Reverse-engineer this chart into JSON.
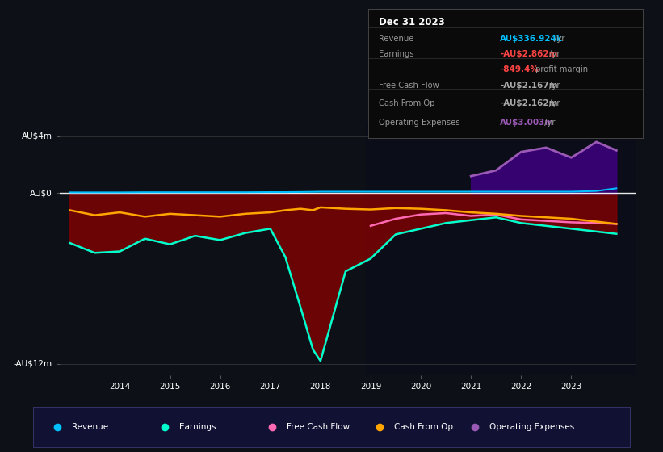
{
  "bg_color": "#0d1117",
  "years": [
    2013.0,
    2013.5,
    2014.0,
    2014.5,
    2015.0,
    2015.5,
    2016.0,
    2016.5,
    2017.0,
    2017.3,
    2017.6,
    2017.85,
    2018.0,
    2018.5,
    2019.0,
    2019.5,
    2020.0,
    2020.5,
    2021.0,
    2021.5,
    2022.0,
    2022.5,
    2023.0,
    2023.5,
    2023.9
  ],
  "revenue": [
    0.05,
    0.05,
    0.05,
    0.06,
    0.06,
    0.06,
    0.06,
    0.06,
    0.07,
    0.07,
    0.08,
    0.09,
    0.1,
    0.1,
    0.1,
    0.1,
    0.1,
    0.1,
    0.1,
    0.1,
    0.1,
    0.1,
    0.1,
    0.15,
    0.337
  ],
  "earnings": [
    -3.5,
    -4.2,
    -4.1,
    -3.2,
    -3.6,
    -3.0,
    -3.3,
    -2.8,
    -2.5,
    -4.5,
    -8.0,
    -11.0,
    -11.8,
    -5.5,
    -4.6,
    -2.9,
    -2.5,
    -2.1,
    -1.9,
    -1.7,
    -2.1,
    -2.3,
    -2.5,
    -2.7,
    -2.862
  ],
  "free_cash_flow": [
    null,
    null,
    null,
    null,
    null,
    null,
    null,
    null,
    null,
    null,
    null,
    null,
    null,
    null,
    -2.3,
    -1.8,
    -1.5,
    -1.4,
    -1.6,
    -1.5,
    -1.85,
    -1.95,
    -2.05,
    -2.1,
    -2.167
  ],
  "cash_from_op": [
    -1.2,
    -1.55,
    -1.35,
    -1.65,
    -1.45,
    -1.55,
    -1.65,
    -1.45,
    -1.35,
    -1.2,
    -1.1,
    -1.2,
    -1.0,
    -1.1,
    -1.15,
    -1.05,
    -1.1,
    -1.2,
    -1.35,
    -1.45,
    -1.6,
    -1.7,
    -1.8,
    -2.0,
    -2.162
  ],
  "op_expenses": [
    null,
    null,
    null,
    null,
    null,
    null,
    null,
    null,
    null,
    null,
    null,
    null,
    null,
    null,
    null,
    null,
    null,
    null,
    1.2,
    1.6,
    2.9,
    3.2,
    2.5,
    3.6,
    3.003
  ],
  "revenue_color": "#00bfff",
  "earnings_color": "#00ffcc",
  "fcf_color": "#ff69b4",
  "cashop_color": "#ffa500",
  "opex_color": "#9b59b6",
  "ylim": [
    -12.8,
    5.0
  ],
  "xlim_start": 2012.8,
  "xlim_end": 2024.3,
  "yticks": [
    4,
    0,
    -12
  ],
  "ytick_labels": [
    "AU$4m",
    "AU$0",
    "-AU$12m"
  ],
  "xticks": [
    2014,
    2015,
    2016,
    2017,
    2018,
    2019,
    2020,
    2021,
    2022,
    2023
  ],
  "info_box_date": "Dec 31 2023",
  "info_rows": [
    {
      "label": "Revenue",
      "value": "AU$336.924k",
      "suffix": " /yr",
      "vcolor": "#00bfff"
    },
    {
      "label": "Earnings",
      "value": "-AU$2.862m",
      "suffix": " /yr",
      "vcolor": "#ff4444"
    },
    {
      "label": "",
      "value": "-849.4%",
      "suffix": " profit margin",
      "vcolor": "#ff4444"
    },
    {
      "label": "Free Cash Flow",
      "value": "-AU$2.167m",
      "suffix": " /yr",
      "vcolor": "#aaaaaa"
    },
    {
      "label": "Cash From Op",
      "value": "-AU$2.162m",
      "suffix": " /yr",
      "vcolor": "#aaaaaa"
    },
    {
      "label": "Operating Expenses",
      "value": "AU$3.003m",
      "suffix": " /yr",
      "vcolor": "#9b59b6"
    }
  ],
  "legend_items": [
    {
      "label": "Revenue",
      "color": "#00bfff"
    },
    {
      "label": "Earnings",
      "color": "#00ffcc"
    },
    {
      "label": "Free Cash Flow",
      "color": "#ff69b4"
    },
    {
      "label": "Cash From Op",
      "color": "#ffa500"
    },
    {
      "label": "Operating Expenses",
      "color": "#9b59b6"
    }
  ]
}
